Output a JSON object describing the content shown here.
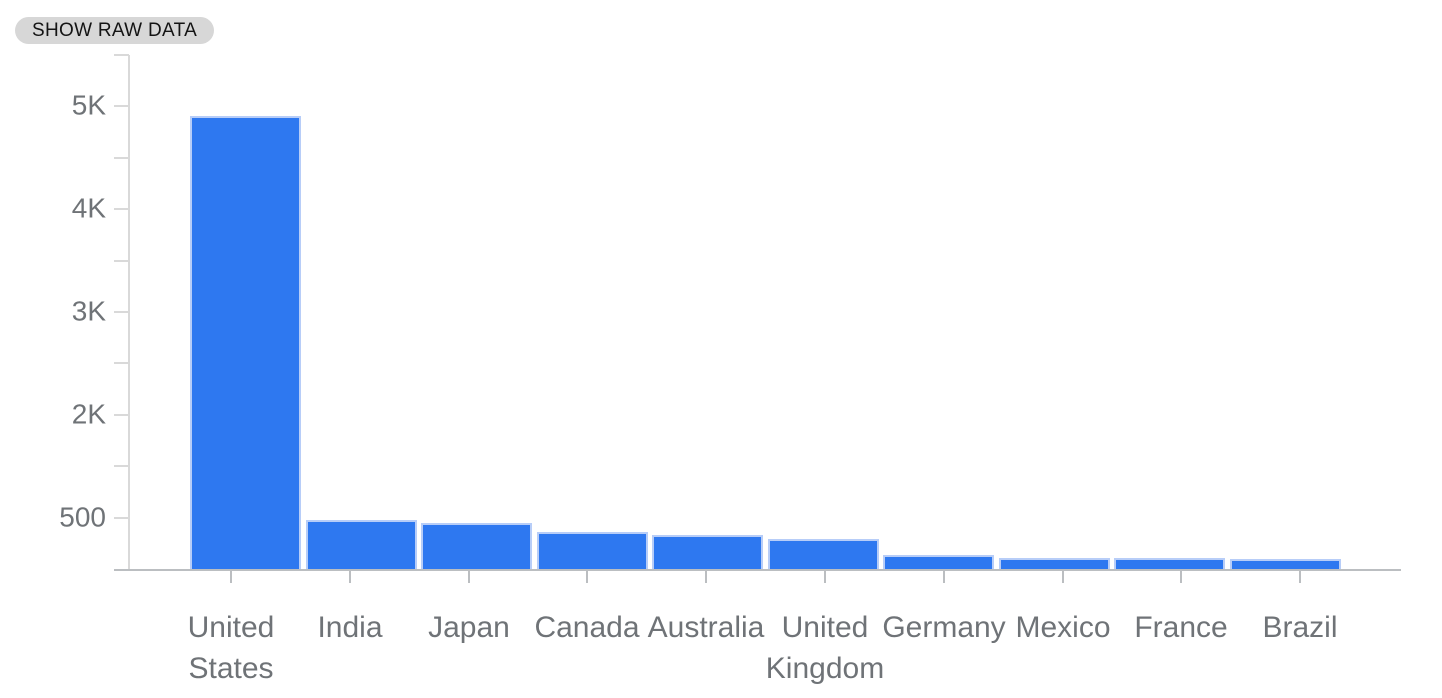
{
  "button": {
    "label": "SHOW RAW DATA"
  },
  "chart_data": {
    "type": "bar",
    "title": "",
    "xlabel": "",
    "ylabel": "",
    "categories": [
      "United States",
      "India",
      "Japan",
      "Canada",
      "Australia",
      "United Kingdom",
      "Germany",
      "Mexico",
      "France",
      "Brazil"
    ],
    "values": [
      4900,
      530,
      500,
      400,
      370,
      325,
      150,
      120,
      115,
      105
    ],
    "y_tick_labels": [
      "5K",
      "4K",
      "3K",
      "2K",
      "500"
    ],
    "axis_scale_max": 5000,
    "ylim": [
      0,
      5500
    ],
    "grid": false,
    "legend": "none",
    "colors": {
      "bar": "#2e78f0",
      "bar_edge": "#b7cdf8",
      "axis": "#d9d9d9",
      "baseline": "#bbbec1",
      "tick_label": "#6f7377",
      "button_bg": "#d7d7d7",
      "button_text": "#141414"
    }
  }
}
